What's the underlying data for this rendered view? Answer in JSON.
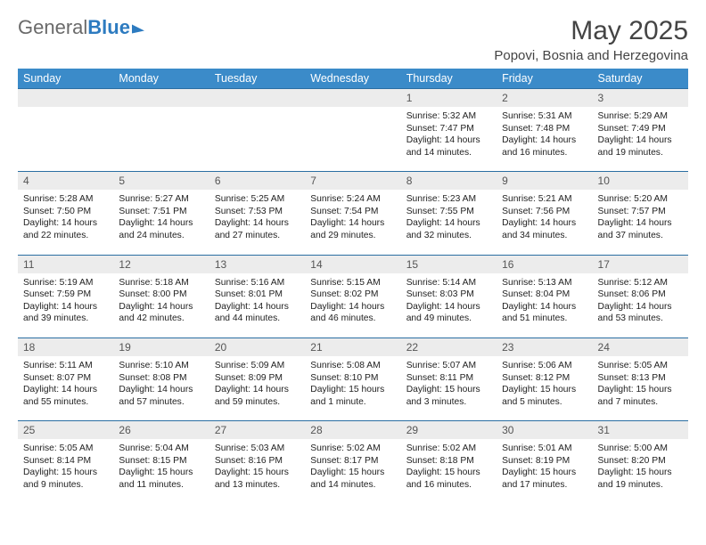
{
  "logo": {
    "text1": "General",
    "text2": "Blue"
  },
  "title": "May 2025",
  "location": "Popovi, Bosnia and Herzegovina",
  "columns": [
    "Sunday",
    "Monday",
    "Tuesday",
    "Wednesday",
    "Thursday",
    "Friday",
    "Saturday"
  ],
  "style": {
    "header_bg": "#3b8bc9",
    "header_fg": "#ffffff",
    "row_border": "#2a6ea2",
    "daynum_bg": "#ececec",
    "body_bg": "#ffffff",
    "title_color": "#444",
    "logo_gray": "#6a6a6a",
    "logo_blue": "#2d7bc0",
    "title_fontsize": 30,
    "location_fontsize": 15,
    "header_fontsize": 12.5,
    "body_fontsize": 10.3
  },
  "weeks": [
    [
      null,
      null,
      null,
      null,
      {
        "n": "1",
        "sr": "5:32 AM",
        "ss": "7:47 PM",
        "dl": "14 hours and 14 minutes."
      },
      {
        "n": "2",
        "sr": "5:31 AM",
        "ss": "7:48 PM",
        "dl": "14 hours and 16 minutes."
      },
      {
        "n": "3",
        "sr": "5:29 AM",
        "ss": "7:49 PM",
        "dl": "14 hours and 19 minutes."
      }
    ],
    [
      {
        "n": "4",
        "sr": "5:28 AM",
        "ss": "7:50 PM",
        "dl": "14 hours and 22 minutes."
      },
      {
        "n": "5",
        "sr": "5:27 AM",
        "ss": "7:51 PM",
        "dl": "14 hours and 24 minutes."
      },
      {
        "n": "6",
        "sr": "5:25 AM",
        "ss": "7:53 PM",
        "dl": "14 hours and 27 minutes."
      },
      {
        "n": "7",
        "sr": "5:24 AM",
        "ss": "7:54 PM",
        "dl": "14 hours and 29 minutes."
      },
      {
        "n": "8",
        "sr": "5:23 AM",
        "ss": "7:55 PM",
        "dl": "14 hours and 32 minutes."
      },
      {
        "n": "9",
        "sr": "5:21 AM",
        "ss": "7:56 PM",
        "dl": "14 hours and 34 minutes."
      },
      {
        "n": "10",
        "sr": "5:20 AM",
        "ss": "7:57 PM",
        "dl": "14 hours and 37 minutes."
      }
    ],
    [
      {
        "n": "11",
        "sr": "5:19 AM",
        "ss": "7:59 PM",
        "dl": "14 hours and 39 minutes."
      },
      {
        "n": "12",
        "sr": "5:18 AM",
        "ss": "8:00 PM",
        "dl": "14 hours and 42 minutes."
      },
      {
        "n": "13",
        "sr": "5:16 AM",
        "ss": "8:01 PM",
        "dl": "14 hours and 44 minutes."
      },
      {
        "n": "14",
        "sr": "5:15 AM",
        "ss": "8:02 PM",
        "dl": "14 hours and 46 minutes."
      },
      {
        "n": "15",
        "sr": "5:14 AM",
        "ss": "8:03 PM",
        "dl": "14 hours and 49 minutes."
      },
      {
        "n": "16",
        "sr": "5:13 AM",
        "ss": "8:04 PM",
        "dl": "14 hours and 51 minutes."
      },
      {
        "n": "17",
        "sr": "5:12 AM",
        "ss": "8:06 PM",
        "dl": "14 hours and 53 minutes."
      }
    ],
    [
      {
        "n": "18",
        "sr": "5:11 AM",
        "ss": "8:07 PM",
        "dl": "14 hours and 55 minutes."
      },
      {
        "n": "19",
        "sr": "5:10 AM",
        "ss": "8:08 PM",
        "dl": "14 hours and 57 minutes."
      },
      {
        "n": "20",
        "sr": "5:09 AM",
        "ss": "8:09 PM",
        "dl": "14 hours and 59 minutes."
      },
      {
        "n": "21",
        "sr": "5:08 AM",
        "ss": "8:10 PM",
        "dl": "15 hours and 1 minute."
      },
      {
        "n": "22",
        "sr": "5:07 AM",
        "ss": "8:11 PM",
        "dl": "15 hours and 3 minutes."
      },
      {
        "n": "23",
        "sr": "5:06 AM",
        "ss": "8:12 PM",
        "dl": "15 hours and 5 minutes."
      },
      {
        "n": "24",
        "sr": "5:05 AM",
        "ss": "8:13 PM",
        "dl": "15 hours and 7 minutes."
      }
    ],
    [
      {
        "n": "25",
        "sr": "5:05 AM",
        "ss": "8:14 PM",
        "dl": "15 hours and 9 minutes."
      },
      {
        "n": "26",
        "sr": "5:04 AM",
        "ss": "8:15 PM",
        "dl": "15 hours and 11 minutes."
      },
      {
        "n": "27",
        "sr": "5:03 AM",
        "ss": "8:16 PM",
        "dl": "15 hours and 13 minutes."
      },
      {
        "n": "28",
        "sr": "5:02 AM",
        "ss": "8:17 PM",
        "dl": "15 hours and 14 minutes."
      },
      {
        "n": "29",
        "sr": "5:02 AM",
        "ss": "8:18 PM",
        "dl": "15 hours and 16 minutes."
      },
      {
        "n": "30",
        "sr": "5:01 AM",
        "ss": "8:19 PM",
        "dl": "15 hours and 17 minutes."
      },
      {
        "n": "31",
        "sr": "5:00 AM",
        "ss": "8:20 PM",
        "dl": "15 hours and 19 minutes."
      }
    ]
  ],
  "labels": {
    "sunrise": "Sunrise: ",
    "sunset": "Sunset: ",
    "daylight": "Daylight: "
  }
}
